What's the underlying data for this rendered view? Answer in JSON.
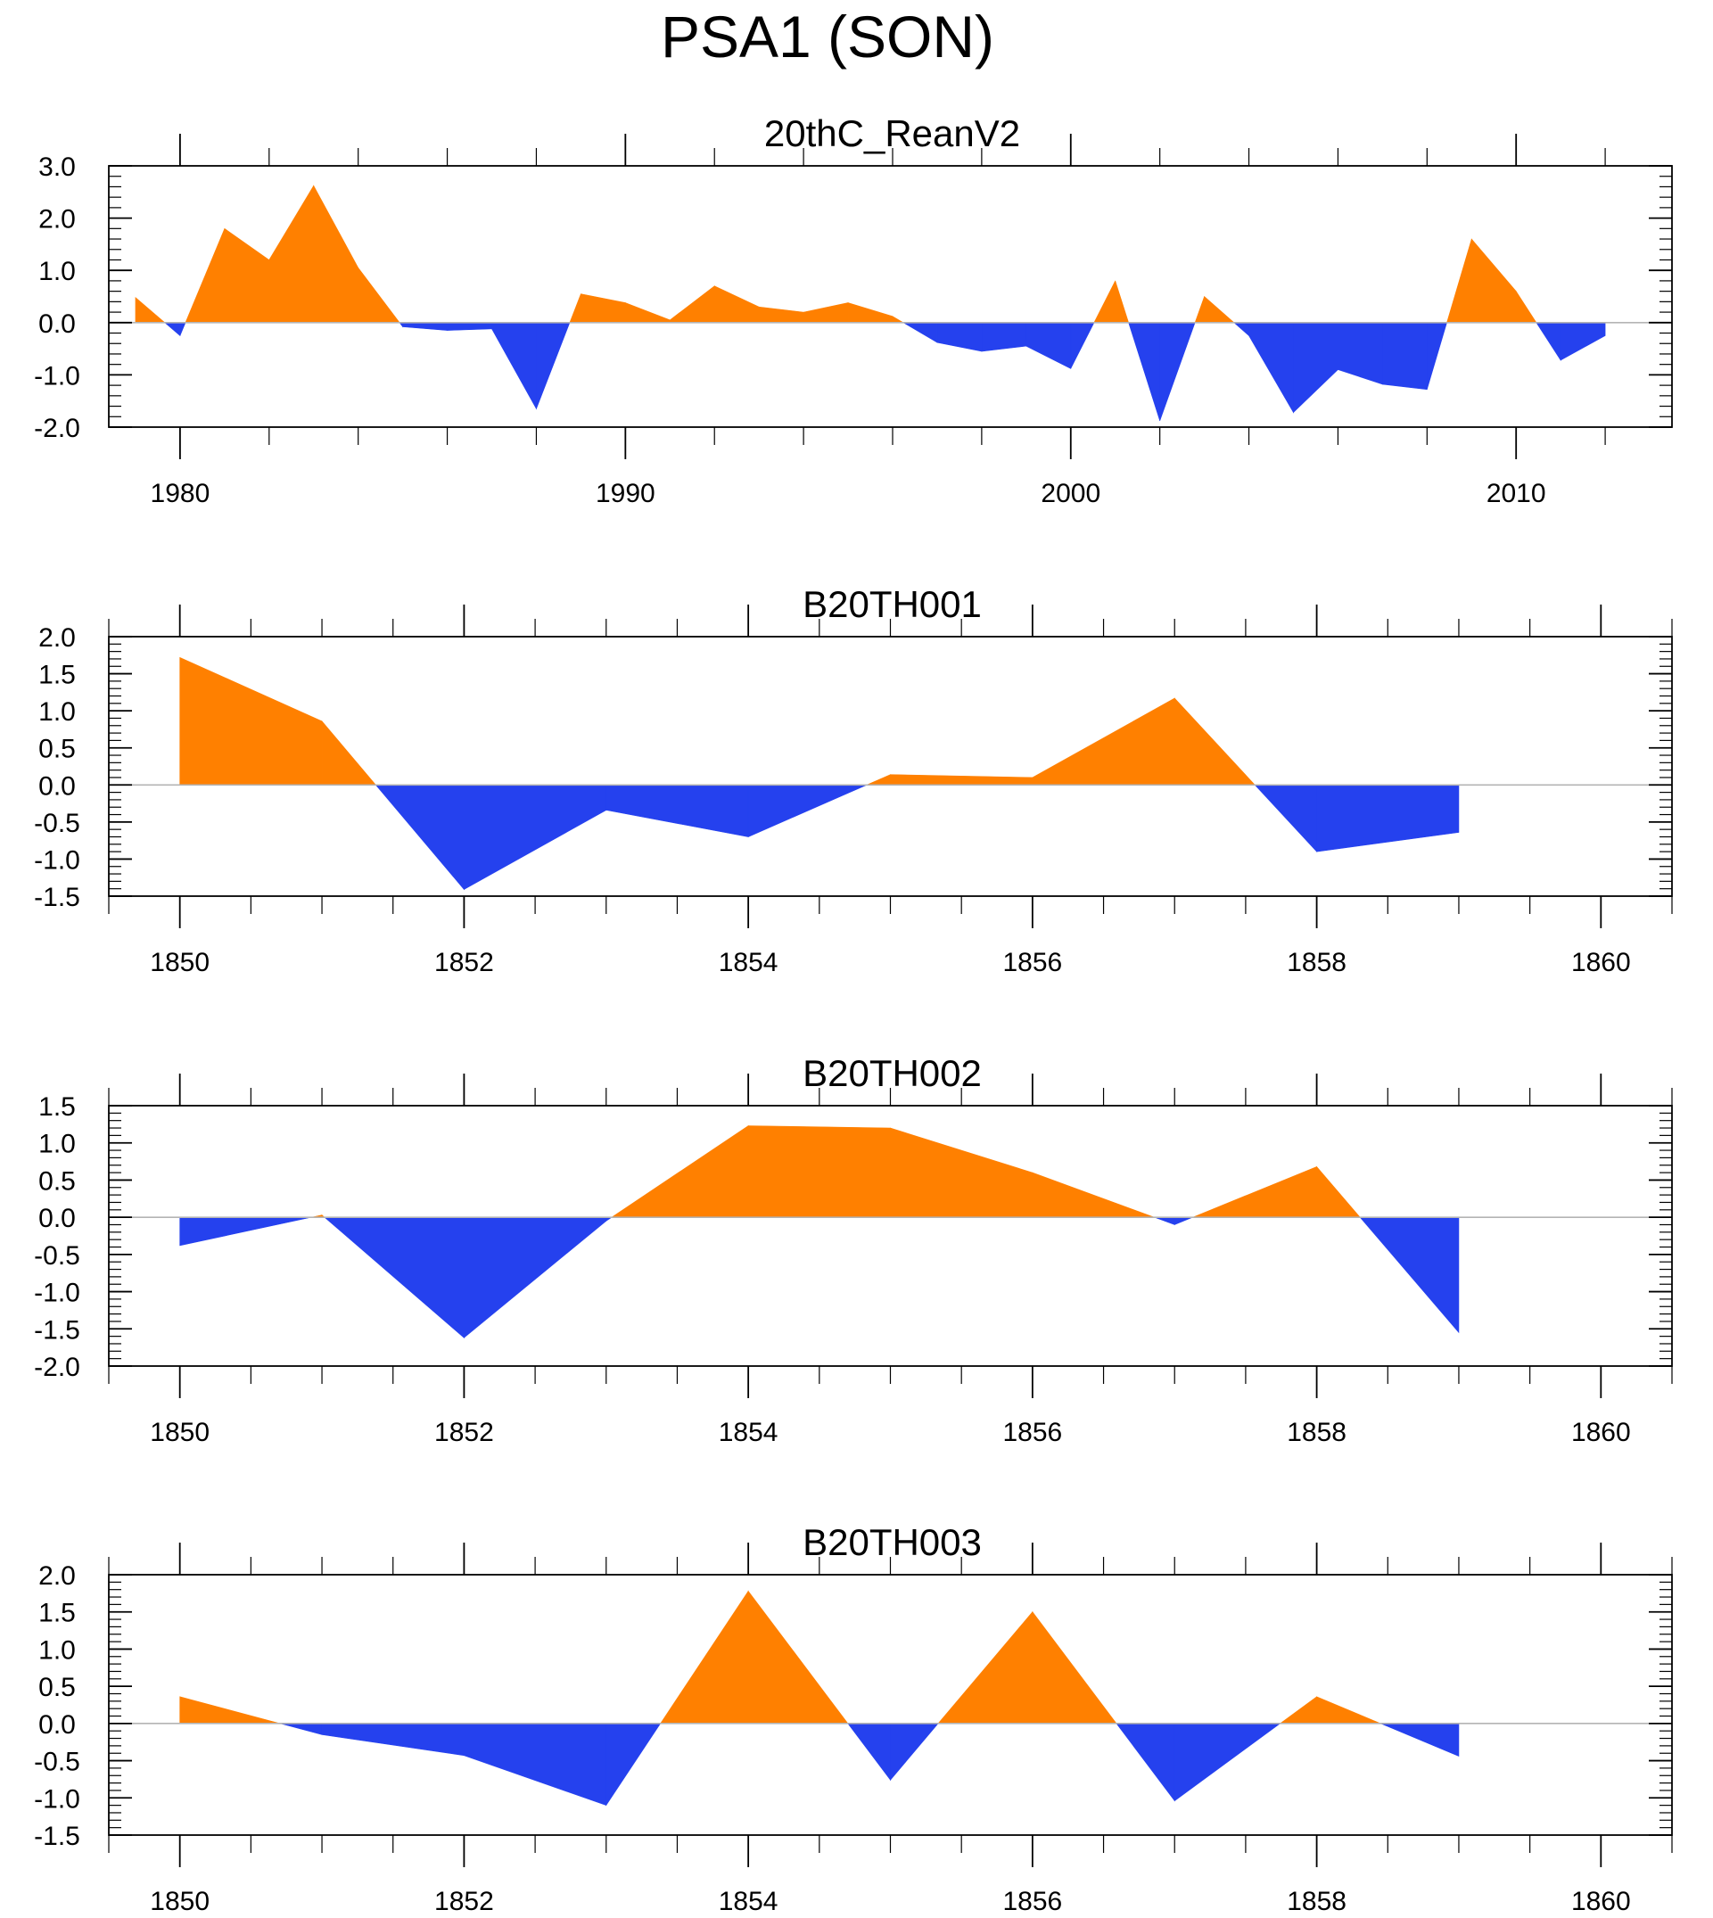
{
  "title": "PSA1 (SON)",
  "colors": {
    "positive": "#ff8000",
    "negative": "#2541ee",
    "axis": "#000000",
    "zero_line": "#b4b4b4"
  },
  "chart_data": [
    {
      "type": "area",
      "title": "20thC_ReanV2",
      "x": [
        1979,
        1980,
        1981,
        1982,
        1983,
        1984,
        1985,
        1986,
        1987,
        1988,
        1989,
        1990,
        1991,
        1992,
        1993,
        1994,
        1995,
        1996,
        1997,
        1998,
        1999,
        2000,
        2001,
        2002,
        2003,
        2004,
        2005,
        2006,
        2007,
        2008,
        2009,
        2010,
        2011,
        2012
      ],
      "values": [
        0.48,
        -0.25,
        1.8,
        1.2,
        2.62,
        1.05,
        -0.08,
        -0.15,
        -0.12,
        -1.65,
        0.55,
        0.38,
        0.05,
        0.7,
        0.3,
        0.2,
        0.38,
        0.12,
        -0.38,
        -0.55,
        -0.45,
        -0.88,
        0.8,
        -1.88,
        0.5,
        -0.25,
        -1.72,
        -0.9,
        -1.18,
        -1.28,
        1.6,
        0.6,
        -0.72,
        -0.25
      ],
      "xlim": [
        1978.4,
        2013.5
      ],
      "ylim": [
        -2.0,
        3.0
      ],
      "yticks": [
        -2.0,
        -1.0,
        0.0,
        1.0,
        2.0,
        3.0
      ],
      "ytick_labels": [
        "-2.0",
        "-1.0",
        "0.0",
        "1.0",
        "2.0",
        "3.0"
      ],
      "xticks": [
        1980,
        1990,
        2000,
        2010
      ],
      "xtick_labels": [
        "1980",
        "1990",
        "2000",
        "2010"
      ],
      "xminor": [
        1982,
        1984,
        1986,
        1988,
        1992,
        1994,
        1996,
        1998,
        2002,
        2004,
        2006,
        2008,
        2012
      ],
      "yminor_step": 0.2,
      "xlabel": "",
      "ylabel": ""
    },
    {
      "type": "area",
      "title": "B20TH001",
      "x": [
        1850,
        1851,
        1852,
        1853,
        1854,
        1855,
        1856,
        1857,
        1858,
        1859
      ],
      "values": [
        1.72,
        0.86,
        -1.41,
        -0.34,
        -0.7,
        0.14,
        0.1,
        1.17,
        -0.9,
        -0.64
      ],
      "xlim": [
        1849.5,
        1860.5
      ],
      "ylim": [
        -1.5,
        2.0
      ],
      "yticks": [
        -1.5,
        -1.0,
        -0.5,
        0.0,
        0.5,
        1.0,
        1.5,
        2.0
      ],
      "ytick_labels": [
        "-1.5",
        "-1.0",
        "-0.5",
        "0.0",
        "0.5",
        "1.0",
        "1.5",
        "2.0"
      ],
      "xticks": [
        1850,
        1852,
        1854,
        1856,
        1858,
        1860
      ],
      "xtick_labels": [
        "1850",
        "1852",
        "1854",
        "1856",
        "1858",
        "1860"
      ],
      "xminor": [
        1849.5,
        1850.5,
        1851,
        1851.5,
        1852.5,
        1853,
        1853.5,
        1854.5,
        1855,
        1855.5,
        1856.5,
        1857,
        1857.5,
        1858.5,
        1859,
        1859.5,
        1860.5
      ],
      "yminor_step": 0.1,
      "xlabel": "",
      "ylabel": ""
    },
    {
      "type": "area",
      "title": "B20TH002",
      "x": [
        1850,
        1851,
        1852,
        1853,
        1854,
        1855,
        1856,
        1857,
        1858,
        1859
      ],
      "values": [
        -0.38,
        0.03,
        -1.62,
        -0.05,
        1.23,
        1.2,
        0.6,
        -0.1,
        0.68,
        -1.55
      ],
      "xlim": [
        1849.5,
        1860.5
      ],
      "ylim": [
        -2.0,
        1.5
      ],
      "yticks": [
        -2.0,
        -1.5,
        -1.0,
        -0.5,
        0.0,
        0.5,
        1.0,
        1.5
      ],
      "ytick_labels": [
        "-2.0",
        "-1.5",
        "-1.0",
        "-0.5",
        "0.0",
        "0.5",
        "1.0",
        "1.5"
      ],
      "xticks": [
        1850,
        1852,
        1854,
        1856,
        1858,
        1860
      ],
      "xtick_labels": [
        "1850",
        "1852",
        "1854",
        "1856",
        "1858",
        "1860"
      ],
      "xminor": [
        1849.5,
        1850.5,
        1851,
        1851.5,
        1852.5,
        1853,
        1853.5,
        1854.5,
        1855,
        1855.5,
        1856.5,
        1857,
        1857.5,
        1858.5,
        1859,
        1859.5,
        1860.5
      ],
      "yminor_step": 0.1,
      "xlabel": "",
      "ylabel": ""
    },
    {
      "type": "area",
      "title": "B20TH003",
      "x": [
        1850,
        1851,
        1852,
        1853,
        1854,
        1855,
        1856,
        1857,
        1858,
        1859
      ],
      "values": [
        0.36,
        -0.15,
        -0.43,
        -1.1,
        1.78,
        -0.76,
        1.5,
        -1.04,
        0.36,
        -0.44
      ],
      "xlim": [
        1849.5,
        1860.5
      ],
      "ylim": [
        -1.5,
        2.0
      ],
      "yticks": [
        -1.5,
        -1.0,
        -0.5,
        0.0,
        0.5,
        1.0,
        1.5,
        2.0
      ],
      "ytick_labels": [
        "-1.5",
        "-1.0",
        "-0.5",
        "0.0",
        "0.5",
        "1.0",
        "1.5",
        "2.0"
      ],
      "xticks": [
        1850,
        1852,
        1854,
        1856,
        1858,
        1860
      ],
      "xtick_labels": [
        "1850",
        "1852",
        "1854",
        "1856",
        "1858",
        "1860"
      ],
      "xminor": [
        1849.5,
        1850.5,
        1851,
        1851.5,
        1852.5,
        1853,
        1853.5,
        1854.5,
        1855,
        1855.5,
        1856.5,
        1857,
        1857.5,
        1858.5,
        1859,
        1859.5,
        1860.5
      ],
      "yminor_step": 0.1,
      "xlabel": "",
      "ylabel": ""
    }
  ]
}
